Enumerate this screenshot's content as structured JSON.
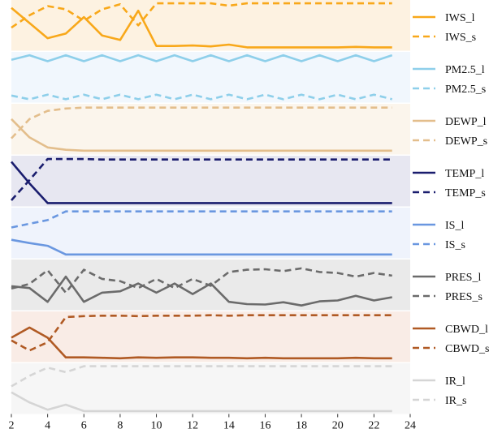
{
  "chart_data": {
    "type": "line",
    "title": "",
    "xlabel": "",
    "ylabel": "",
    "x": [
      2,
      3,
      4,
      5,
      6,
      7,
      8,
      9,
      10,
      11,
      12,
      13,
      14,
      15,
      16,
      17,
      18,
      19,
      20,
      21,
      22,
      23
    ],
    "xlim": [
      2,
      24
    ],
    "xticks": [
      2,
      4,
      6,
      8,
      10,
      12,
      14,
      16,
      18,
      20,
      22,
      24
    ],
    "grid": false,
    "legend_position": "right",
    "band_ylim": [
      0,
      1
    ],
    "bands": [
      {
        "color": "#FDF2E1",
        "line_color": "#F8A81A",
        "series": [
          {
            "name": "IWS_l",
            "style": "solid",
            "values": [
              0.88,
              0.55,
              0.22,
              0.32,
              0.68,
              0.28,
              0.18,
              0.82,
              0.05,
              0.05,
              0.06,
              0.04,
              0.08,
              0.02,
              0.02,
              0.02,
              0.02,
              0.02,
              0.02,
              0.03,
              0.02,
              0.02
            ]
          },
          {
            "name": "IWS_s",
            "style": "dashed",
            "values": [
              0.45,
              0.72,
              0.92,
              0.85,
              0.6,
              0.85,
              0.96,
              0.5,
              0.98,
              0.98,
              0.98,
              0.98,
              0.93,
              0.98,
              0.98,
              0.98,
              0.98,
              0.98,
              0.98,
              0.98,
              0.98,
              0.98
            ]
          }
        ]
      },
      {
        "color": "#F1F7FD",
        "line_color": "#8ECFEA",
        "series": [
          {
            "name": "PM2.5_l",
            "style": "solid",
            "values": [
              0.88,
              0.98,
              0.85,
              0.98,
              0.85,
              0.98,
              0.85,
              0.98,
              0.85,
              0.98,
              0.85,
              0.98,
              0.85,
              0.98,
              0.85,
              0.98,
              0.85,
              0.98,
              0.85,
              0.98,
              0.85,
              0.98
            ]
          },
          {
            "name": "PM2.5_s",
            "style": "dashed",
            "values": [
              0.1,
              0.02,
              0.12,
              0.02,
              0.12,
              0.02,
              0.12,
              0.02,
              0.12,
              0.02,
              0.12,
              0.02,
              0.12,
              0.02,
              0.12,
              0.02,
              0.12,
              0.02,
              0.12,
              0.02,
              0.12,
              0.02
            ]
          }
        ]
      },
      {
        "color": "#FBF5EC",
        "line_color": "#E3BE8C",
        "series": [
          {
            "name": "DEWP_l",
            "style": "solid",
            "values": [
              0.72,
              0.32,
              0.1,
              0.05,
              0.03,
              0.03,
              0.03,
              0.03,
              0.03,
              0.03,
              0.03,
              0.03,
              0.03,
              0.03,
              0.03,
              0.03,
              0.03,
              0.03,
              0.03,
              0.03,
              0.03,
              0.03
            ]
          },
          {
            "name": "DEWP_s",
            "style": "dashed",
            "values": [
              0.3,
              0.72,
              0.9,
              0.95,
              0.97,
              0.97,
              0.97,
              0.97,
              0.97,
              0.97,
              0.97,
              0.97,
              0.97,
              0.97,
              0.97,
              0.97,
              0.97,
              0.97,
              0.97,
              0.97,
              0.97,
              0.97
            ]
          }
        ]
      },
      {
        "color": "#E7E7F1",
        "line_color": "#1A1D6E",
        "series": [
          {
            "name": "TEMP_l",
            "style": "solid",
            "values": [
              0.92,
              0.45,
              0.02,
              0.02,
              0.02,
              0.02,
              0.02,
              0.02,
              0.02,
              0.02,
              0.02,
              0.02,
              0.02,
              0.02,
              0.02,
              0.02,
              0.02,
              0.02,
              0.02,
              0.02,
              0.02,
              0.02
            ]
          },
          {
            "name": "TEMP_s",
            "style": "dashed",
            "values": [
              0.08,
              0.52,
              0.98,
              0.98,
              0.98,
              0.97,
              0.97,
              0.97,
              0.97,
              0.97,
              0.97,
              0.97,
              0.97,
              0.97,
              0.97,
              0.97,
              0.97,
              0.97,
              0.97,
              0.97,
              0.97,
              0.97
            ]
          }
        ]
      },
      {
        "color": "#EFF3FC",
        "line_color": "#6A97E0",
        "series": [
          {
            "name": "IS_l",
            "style": "solid",
            "values": [
              0.35,
              0.28,
              0.22,
              0.03,
              0.03,
              0.03,
              0.03,
              0.03,
              0.03,
              0.03,
              0.03,
              0.03,
              0.03,
              0.03,
              0.03,
              0.03,
              0.03,
              0.03,
              0.03,
              0.03,
              0.03,
              0.03
            ]
          },
          {
            "name": "IS_s",
            "style": "dashed",
            "values": [
              0.62,
              0.7,
              0.78,
              0.97,
              0.97,
              0.97,
              0.97,
              0.97,
              0.97,
              0.97,
              0.97,
              0.97,
              0.97,
              0.97,
              0.97,
              0.97,
              0.97,
              0.97,
              0.97,
              0.97,
              0.97,
              0.97
            ]
          }
        ]
      },
      {
        "color": "#EAEAEA",
        "line_color": "#6B6B6B",
        "series": [
          {
            "name": "PRES_l",
            "style": "solid",
            "values": [
              0.47,
              0.43,
              0.13,
              0.68,
              0.13,
              0.33,
              0.36,
              0.53,
              0.33,
              0.53,
              0.3,
              0.53,
              0.13,
              0.08,
              0.07,
              0.12,
              0.05,
              0.14,
              0.16,
              0.26,
              0.16,
              0.23
            ]
          },
          {
            "name": "PRES_s",
            "style": "dashed",
            "values": [
              0.42,
              0.52,
              0.82,
              0.33,
              0.83,
              0.63,
              0.58,
              0.43,
              0.63,
              0.43,
              0.63,
              0.48,
              0.78,
              0.83,
              0.84,
              0.8,
              0.86,
              0.78,
              0.76,
              0.68,
              0.76,
              0.7
            ]
          }
        ]
      },
      {
        "color": "#F9ECE6",
        "line_color": "#B05A24",
        "series": [
          {
            "name": "CBWD_l",
            "style": "solid",
            "values": [
              0.48,
              0.7,
              0.48,
              0.05,
              0.05,
              0.04,
              0.03,
              0.05,
              0.04,
              0.05,
              0.05,
              0.04,
              0.04,
              0.03,
              0.04,
              0.03,
              0.03,
              0.03,
              0.03,
              0.04,
              0.03,
              0.03
            ]
          },
          {
            "name": "CBWD_s",
            "style": "dashed",
            "values": [
              0.42,
              0.2,
              0.38,
              0.93,
              0.95,
              0.96,
              0.96,
              0.95,
              0.96,
              0.96,
              0.96,
              0.97,
              0.96,
              0.97,
              0.97,
              0.97,
              0.97,
              0.97,
              0.97,
              0.97,
              0.97,
              0.97
            ]
          }
        ]
      },
      {
        "color": "#F6F6F6",
        "line_color": "#D5D5D5",
        "series": [
          {
            "name": "IR_l",
            "style": "solid",
            "values": [
              0.42,
              0.2,
              0.04,
              0.15,
              0.01,
              0.01,
              0.01,
              0.01,
              0.01,
              0.01,
              0.01,
              0.01,
              0.01,
              0.01,
              0.01,
              0.01,
              0.01,
              0.01,
              0.01,
              0.01,
              0.01,
              0.01
            ]
          },
          {
            "name": "IR_s",
            "style": "dashed",
            "values": [
              0.55,
              0.78,
              0.96,
              0.86,
              0.99,
              0.99,
              0.99,
              0.99,
              0.99,
              0.99,
              0.99,
              0.99,
              0.99,
              0.99,
              0.99,
              0.99,
              0.99,
              0.99,
              0.99,
              0.99,
              0.99,
              0.99
            ]
          }
        ]
      }
    ]
  }
}
